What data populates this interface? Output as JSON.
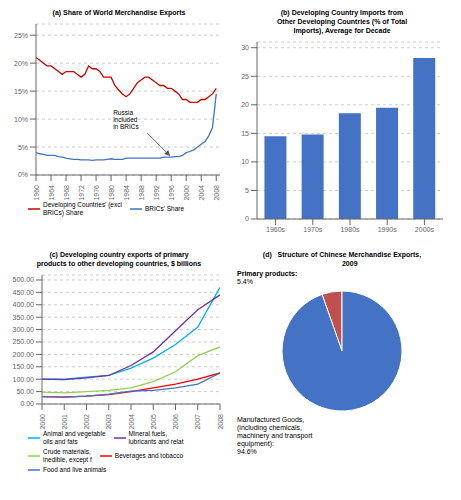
{
  "chart_data": [
    {
      "type": "line",
      "title": "(a) Share of World Merchandise Exports",
      "x": [
        1960,
        1961,
        1962,
        1963,
        1964,
        1965,
        1966,
        1967,
        1968,
        1969,
        1970,
        1971,
        1972,
        1973,
        1974,
        1975,
        1976,
        1977,
        1978,
        1979,
        1980,
        1981,
        1982,
        1983,
        1984,
        1985,
        1986,
        1987,
        1988,
        1989,
        1990,
        1991,
        1992,
        1993,
        1994,
        1995,
        1996,
        1997,
        1998,
        1999,
        2000,
        2001,
        2002,
        2003,
        2004,
        2005,
        2006,
        2007,
        2008
      ],
      "xlim": [
        1960,
        2009
      ],
      "xticks": [
        1960,
        1964,
        1968,
        1972,
        1976,
        1980,
        1984,
        1988,
        1992,
        1996,
        2000,
        2004,
        2008
      ],
      "ylim": [
        0,
        27
      ],
      "yticks": [
        {
          "value": 0,
          "label": "0%"
        },
        {
          "value": 5,
          "label": "5%"
        },
        {
          "value": 10,
          "label": "10%"
        },
        {
          "value": 15,
          "label": "15%"
        },
        {
          "value": 20,
          "label": "20%"
        },
        {
          "value": 25,
          "label": "25%"
        }
      ],
      "grid": true,
      "legend": "bottom",
      "series": [
        {
          "name": "Developing Countries' (excl\nBRICs) Share",
          "color": "#cc0000",
          "values": [
            21.0,
            20.5,
            20.0,
            19.5,
            19.5,
            19.0,
            18.5,
            18.0,
            18.5,
            18.5,
            18.5,
            18.0,
            17.5,
            18.0,
            19.5,
            19.0,
            19.0,
            18.5,
            17.5,
            17.5,
            17.5,
            16.0,
            15.2,
            14.5,
            14.0,
            14.5,
            15.5,
            16.5,
            17.0,
            17.5,
            17.5,
            17.0,
            16.5,
            16.0,
            16.0,
            15.5,
            15.5,
            15.0,
            14.5,
            13.5,
            13.5,
            13.0,
            13.0,
            13.0,
            13.5,
            13.5,
            14.0,
            14.5,
            15.5
          ]
        },
        {
          "name": "BRICs' Share",
          "color": "#4472c4",
          "values": [
            4.0,
            3.8,
            3.7,
            3.5,
            3.5,
            3.5,
            3.3,
            3.2,
            3.0,
            2.9,
            2.8,
            2.8,
            2.7,
            2.7,
            2.7,
            2.6,
            2.7,
            2.7,
            2.7,
            2.8,
            2.9,
            2.8,
            2.8,
            2.8,
            3.0,
            3.0,
            3.0,
            3.0,
            3.0,
            3.0,
            3.0,
            3.0,
            3.0,
            3.0,
            3.2,
            3.2,
            3.2,
            3.3,
            3.3,
            3.5,
            4.0,
            4.2,
            4.5,
            5.0,
            5.5,
            6.0,
            7.0,
            8.5,
            14.5
          ]
        }
      ],
      "annotations": [
        {
          "text": "Russia\nincluded\nin BRICs",
          "x": 1996,
          "y": 3.2
        }
      ]
    },
    {
      "type": "bar",
      "title": "(b) Developing Country Imports from\nOther Developing Countries (% of Total\nImports), Average for Decade",
      "categories": [
        "1960s",
        "1970s",
        "1980s",
        "1990s",
        "2000s"
      ],
      "values": [
        14.5,
        14.8,
        18.5,
        19.5,
        28.2
      ],
      "color": "#4472c4",
      "ylim": [
        0,
        31
      ],
      "yticks": [
        0,
        5,
        10,
        15,
        20,
        25,
        30
      ],
      "grid": true
    },
    {
      "type": "line",
      "title": "(c) Developing country exports of primary\nproducts to other developing countries, $ billions",
      "x": [
        2000,
        2001,
        2002,
        2003,
        2004,
        2005,
        2006,
        2007,
        2008
      ],
      "xlim": [
        2000,
        2008
      ],
      "xticks": [
        2000,
        2001,
        2002,
        2003,
        2004,
        2005,
        2006,
        2007,
        2008
      ],
      "ylim": [
        0,
        520
      ],
      "yticks": [
        {
          "value": 0,
          "label": "0.00"
        },
        {
          "value": 50,
          "label": "50.00"
        },
        {
          "value": 100,
          "label": "100.00"
        },
        {
          "value": 150,
          "label": "150.00"
        },
        {
          "value": 200,
          "label": "200.00"
        },
        {
          "value": 250,
          "label": "250.00"
        },
        {
          "value": 300,
          "label": "300.00"
        },
        {
          "value": 350,
          "label": "350.00"
        },
        {
          "value": 400,
          "label": "400.00"
        },
        {
          "value": 450,
          "label": "450.00"
        },
        {
          "value": 500,
          "label": "500.00"
        }
      ],
      "grid": true,
      "legend": "bottom",
      "series": [
        {
          "name": "Animal and vegetable\noils and fats",
          "color": "#00b0f0",
          "values": [
            100,
            100,
            108,
            115,
            145,
            185,
            240,
            310,
            470
          ]
        },
        {
          "name": "Mineral fuels,\nlubricants and relat",
          "color": "#7030a0",
          "values": [
            100,
            98,
            105,
            115,
            155,
            210,
            295,
            380,
            440
          ]
        },
        {
          "name": "Crude materials,\ninedible, except f",
          "color": "#92d050",
          "values": [
            48,
            45,
            50,
            55,
            65,
            90,
            130,
            195,
            230
          ]
        },
        {
          "name": "Beverages and tobacco",
          "color": "#ff0000",
          "values": [
            30,
            28,
            32,
            38,
            50,
            65,
            80,
            100,
            125
          ]
        },
        {
          "name": "Food and live animals",
          "color": "#4472c4",
          "values": [
            30,
            28,
            32,
            40,
            52,
            55,
            65,
            80,
            125
          ]
        }
      ]
    },
    {
      "type": "pie",
      "title": "(d)   Structure of Chinese Merchandise Exports,\n        2009",
      "categories": [
        "Primary products:",
        "Manufactured Goods,\n(including chemicals,\nmachinery and transport\nequipment):"
      ],
      "values": [
        5.4,
        94.6
      ],
      "value_labels": [
        "5.4%",
        "94.6%"
      ],
      "data_labels": true,
      "colors": [
        "#c0504d",
        "#4472c4"
      ]
    }
  ]
}
